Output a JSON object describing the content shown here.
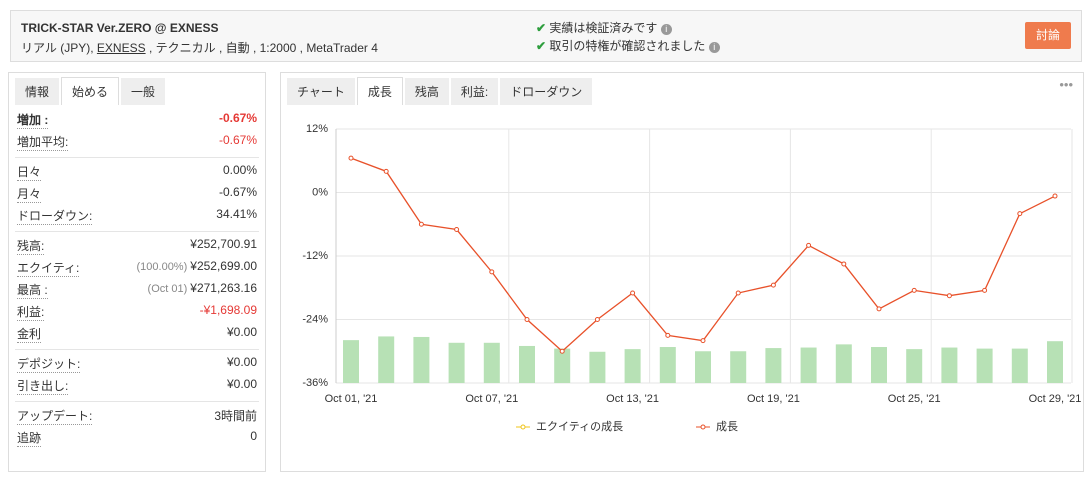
{
  "header": {
    "title": "TRICK-STAR Ver.ZERO @ EXNESS",
    "subtitle_pre": "リアル (JPY),",
    "subtitle_link": "EXNESS",
    "subtitle_post": ", テクニカル , 自動 , 1:2000 , MetaTrader 4",
    "badges": [
      "実績は検証済みです",
      "取引の特権が確認されました"
    ],
    "button": "討論"
  },
  "left_panel": {
    "tabs": [
      "情報",
      "始める",
      "一般"
    ],
    "active_tab": 1,
    "negative_color": "#e53935",
    "groups": [
      [
        {
          "label": "増加 :",
          "value": "-0.67%",
          "negative": true,
          "bold": true
        },
        {
          "label": "増加平均:",
          "value": "-0.67%",
          "negative": true
        }
      ],
      [
        {
          "label": "日々",
          "value": "0.00%"
        },
        {
          "label": "月々",
          "value": "-0.67%"
        },
        {
          "label": "ドローダウン:",
          "value": "34.41%"
        }
      ],
      [
        {
          "label": "残高:",
          "value": "¥252,700.91"
        },
        {
          "label": "エクイティ:",
          "prefix": "(100.00%)",
          "value": "¥252,699.00"
        },
        {
          "label": "最高 :",
          "prefix": "(Oct 01)",
          "value": "¥271,263.16"
        },
        {
          "label": "利益:",
          "value": "-¥1,698.09",
          "negative": true
        },
        {
          "label": "金利",
          "value": "¥0.00"
        }
      ],
      [
        {
          "label": "デポジット:",
          "value": "¥0.00"
        },
        {
          "label": "引き出し:",
          "value": "¥0.00"
        }
      ],
      [
        {
          "label": "アップデート:",
          "value": "3時間前"
        },
        {
          "label": "追跡",
          "value": "0"
        }
      ]
    ]
  },
  "chart_panel": {
    "tabs": [
      "チャート",
      "成長",
      "残高",
      "利益:",
      "ドローダウン"
    ],
    "active_tab": 1,
    "menu": "•••"
  },
  "chart_data": {
    "type": "line",
    "categories": [
      "Oct 01, '21",
      null,
      null,
      null,
      "Oct 07, '21",
      null,
      null,
      null,
      "Oct 13, '21",
      null,
      null,
      null,
      "Oct 19, '21",
      null,
      null,
      null,
      "Oct 25, '21",
      null,
      null,
      null,
      "Oct 29, '21"
    ],
    "series": [
      {
        "name": "成長",
        "color": "#e8512a",
        "values": [
          6.5,
          4,
          -6,
          -7,
          -15,
          -24,
          -30,
          -24,
          -19,
          -27,
          -28,
          -19,
          -17.5,
          -10,
          -13.5,
          -22,
          -18.5,
          -19.5,
          -18.5,
          -4,
          -0.67
        ]
      }
    ],
    "bars": {
      "color": "#b7e1b5",
      "values": [
        -27.9,
        -27.2,
        -27.3,
        -28.4,
        -28.4,
        -29,
        -29.5,
        -30.1,
        -29.6,
        -29.2,
        -30,
        -30,
        -29.4,
        -29.3,
        -28.7,
        -29.2,
        -29.6,
        -29.3,
        -29.5,
        -29.5,
        -28.1
      ]
    },
    "legend": [
      {
        "name": "エクイティの成長",
        "color": "#f0c419"
      },
      {
        "name": "成長",
        "color": "#e8512a"
      }
    ],
    "ylim": [
      -36,
      12
    ],
    "yticks": [
      {
        "value": 12,
        "label": "12%"
      },
      {
        "value": 0,
        "label": "0%"
      },
      {
        "value": -12,
        "label": "-12%"
      },
      {
        "value": -24,
        "label": "-24%"
      },
      {
        "value": -36,
        "label": "-36%"
      }
    ],
    "grid": true
  }
}
